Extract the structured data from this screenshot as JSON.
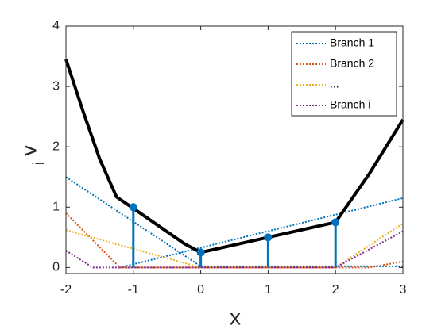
{
  "chart_data": {
    "type": "line",
    "xlabel": "x",
    "ylabel": "v",
    "ylabel_subscript": "i",
    "xlim": [
      -2,
      3
    ],
    "ylim": [
      -0.1,
      4
    ],
    "xticks": [
      -2,
      -1,
      0,
      1,
      2,
      3
    ],
    "yticks": [
      0,
      1,
      2,
      3,
      4
    ],
    "legend_position": "northeast",
    "box": true,
    "series": [
      {
        "name": "Branch 1",
        "color": "#0072BD",
        "x": [
          -2,
          0,
          3,
          null,
          -1.2,
          3
        ],
        "values": [
          1.5,
          0.02,
          0.02,
          null,
          0,
          1.15
        ]
      },
      {
        "name": "Branch 2",
        "color": "#D95319",
        "x": [
          -2,
          -1.2,
          2.5,
          3
        ],
        "values": [
          0.9,
          0,
          0,
          0.1
        ]
      },
      {
        "name": "...",
        "color": "#EDB120",
        "x": [
          -2,
          0,
          2,
          3
        ],
        "values": [
          0.62,
          0,
          0,
          0.73
        ]
      },
      {
        "name": "Branch i",
        "color": "#7E2F8E",
        "x": [
          -2,
          -1.6,
          2,
          3
        ],
        "values": [
          0.28,
          0,
          0,
          0.6
        ]
      }
    ],
    "envelope": {
      "color": "#000000",
      "x": [
        -2,
        -1.75,
        -1.5,
        -1.25,
        -1,
        -0.25,
        0,
        1,
        2,
        2.5,
        3
      ],
      "values": [
        3.45,
        2.6,
        1.8,
        1.17,
        0.98,
        0.4,
        0.25,
        0.5,
        0.75,
        1.55,
        2.45
      ]
    },
    "stems": {
      "color": "#0072BD",
      "x": [
        -1,
        0,
        1,
        2
      ],
      "values": [
        1.0,
        0.25,
        0.5,
        0.75
      ]
    }
  }
}
